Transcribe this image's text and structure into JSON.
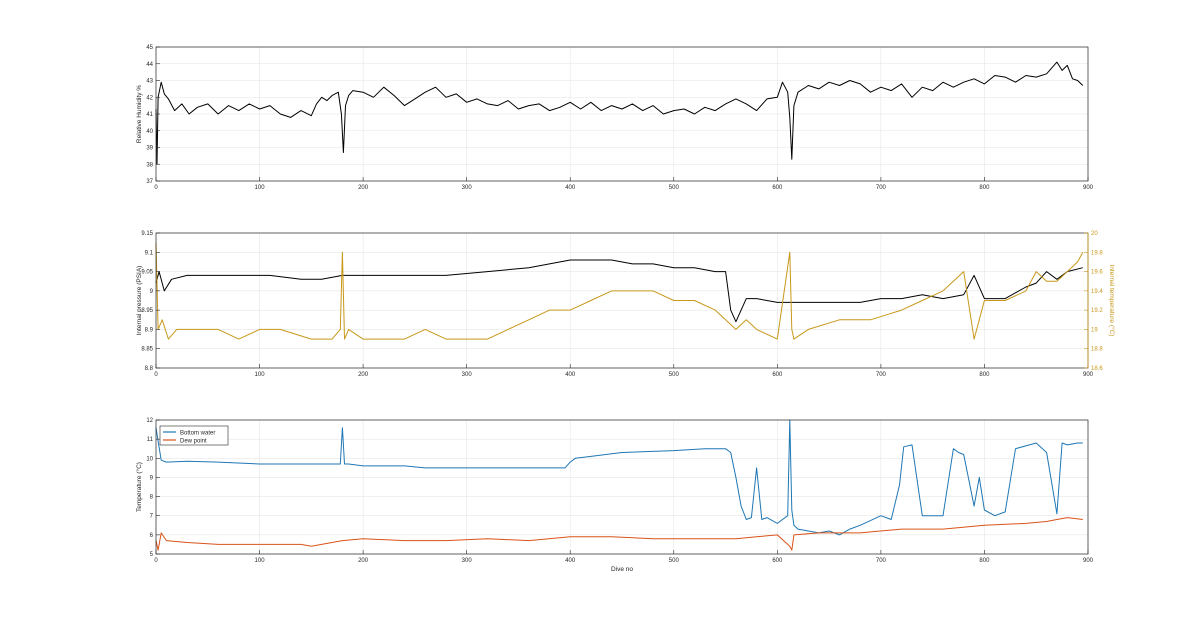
{
  "colors": {
    "black": "#000000",
    "temperature_orange": "#c8981a",
    "bottom_water_blue": "#1f77b4",
    "dew_point_red": "#d95319",
    "grid": "#e6e6e6",
    "axis": "#262626"
  },
  "chart_data": [
    {
      "type": "line",
      "xlabel": "",
      "ylabel": "Relative Humidity %",
      "xlim": [
        0,
        900
      ],
      "ylim": [
        37,
        45
      ],
      "xticks": [
        0,
        100,
        200,
        300,
        400,
        500,
        600,
        700,
        800,
        900
      ],
      "yticks": [
        37,
        38,
        39,
        40,
        41,
        42,
        43,
        44,
        45
      ],
      "grid": true,
      "series": [
        {
          "color": "#000000",
          "x": [
            0,
            1,
            2,
            5,
            8,
            12,
            18,
            25,
            32,
            40,
            50,
            60,
            70,
            80,
            90,
            100,
            110,
            120,
            130,
            140,
            150,
            155,
            160,
            165,
            170,
            176,
            179,
            181,
            183,
            186,
            190,
            200,
            210,
            220,
            230,
            240,
            250,
            260,
            270,
            280,
            290,
            300,
            310,
            320,
            330,
            340,
            350,
            360,
            370,
            380,
            390,
            400,
            410,
            420,
            430,
            440,
            450,
            460,
            470,
            480,
            490,
            500,
            510,
            520,
            530,
            540,
            550,
            560,
            570,
            580,
            590,
            600,
            605,
            610,
            612,
            614,
            616,
            620,
            630,
            640,
            650,
            660,
            670,
            680,
            690,
            700,
            710,
            720,
            730,
            740,
            750,
            760,
            770,
            780,
            790,
            800,
            810,
            820,
            830,
            840,
            850,
            860,
            870,
            875,
            880,
            885,
            890,
            895
          ],
          "values": [
            41.3,
            38.0,
            42.0,
            42.9,
            42.2,
            41.9,
            41.2,
            41.6,
            41.0,
            41.4,
            41.6,
            41.0,
            41.5,
            41.2,
            41.6,
            41.3,
            41.5,
            41.0,
            40.8,
            41.2,
            40.9,
            41.6,
            42.0,
            41.8,
            42.1,
            42.3,
            41.0,
            38.7,
            41.5,
            42.1,
            42.4,
            42.3,
            42.0,
            42.6,
            42.1,
            41.5,
            41.9,
            42.3,
            42.6,
            42.0,
            42.2,
            41.7,
            41.9,
            41.6,
            41.5,
            41.8,
            41.3,
            41.5,
            41.6,
            41.2,
            41.4,
            41.7,
            41.3,
            41.7,
            41.2,
            41.5,
            41.3,
            41.6,
            41.2,
            41.5,
            41.0,
            41.2,
            41.3,
            41.0,
            41.4,
            41.2,
            41.6,
            41.9,
            41.6,
            41.2,
            41.9,
            42.0,
            42.9,
            42.3,
            40.8,
            38.3,
            41.5,
            42.3,
            42.7,
            42.5,
            42.9,
            42.7,
            43.0,
            42.8,
            42.3,
            42.6,
            42.4,
            42.8,
            42.0,
            42.6,
            42.4,
            42.9,
            42.6,
            42.9,
            43.1,
            42.8,
            43.3,
            43.2,
            42.9,
            43.3,
            43.2,
            43.4,
            44.1,
            43.6,
            43.9,
            43.1,
            43.0,
            42.7
          ]
        }
      ]
    },
    {
      "type": "line",
      "xlabel": "",
      "ylabel": "Internal pressure (PSIA)",
      "ylabel_right": "Internal temperature (°C)",
      "xlim": [
        0,
        900
      ],
      "ylim": [
        8.8,
        9.15
      ],
      "ylim_right": [
        18.6,
        20
      ],
      "xticks": [
        0,
        100,
        200,
        300,
        400,
        500,
        600,
        700,
        800,
        900
      ],
      "yticks": [
        8.8,
        8.85,
        8.9,
        8.95,
        9,
        9.05,
        9.1,
        9.15
      ],
      "yticks_labels": [
        "8.8",
        "8.85",
        "8.9",
        "8.95",
        "9",
        "9.05",
        "9.1",
        "9.15"
      ],
      "yticks_right": [
        18.6,
        18.8,
        19,
        19.2,
        19.4,
        19.6,
        19.8,
        20
      ],
      "yticks_right_labels": [
        "18.6",
        "18.8",
        "19",
        "19.2",
        "19.4",
        "19.6",
        "19.8",
        "20"
      ],
      "grid": true,
      "series": [
        {
          "axis": "left",
          "color": "#000000",
          "x": [
            0,
            3,
            8,
            15,
            30,
            50,
            80,
            110,
            140,
            160,
            180,
            200,
            240,
            280,
            320,
            360,
            380,
            400,
            420,
            440,
            460,
            480,
            500,
            520,
            540,
            550,
            555,
            560,
            570,
            580,
            600,
            620,
            640,
            660,
            680,
            700,
            720,
            740,
            760,
            780,
            790,
            800,
            820,
            840,
            850,
            860,
            870,
            880,
            895
          ],
          "values": [
            9.02,
            9.05,
            9.0,
            9.03,
            9.04,
            9.04,
            9.04,
            9.04,
            9.03,
            9.03,
            9.04,
            9.04,
            9.04,
            9.04,
            9.05,
            9.06,
            9.07,
            9.08,
            9.08,
            9.08,
            9.07,
            9.07,
            9.06,
            9.06,
            9.05,
            9.05,
            8.95,
            8.92,
            8.98,
            8.98,
            8.97,
            8.97,
            8.97,
            8.97,
            8.97,
            8.98,
            8.98,
            8.99,
            8.98,
            8.99,
            9.04,
            8.98,
            8.98,
            9.01,
            9.02,
            9.05,
            9.03,
            9.05,
            9.06
          ]
        },
        {
          "axis": "right",
          "color": "#c8981a",
          "x": [
            0,
            2,
            6,
            12,
            20,
            40,
            60,
            80,
            100,
            120,
            150,
            170,
            178,
            180,
            182,
            186,
            200,
            220,
            240,
            260,
            280,
            300,
            320,
            340,
            360,
            380,
            400,
            420,
            440,
            460,
            480,
            500,
            520,
            540,
            560,
            570,
            580,
            600,
            612,
            614,
            616,
            630,
            660,
            690,
            720,
            740,
            760,
            780,
            790,
            800,
            820,
            840,
            850,
            860,
            870,
            880,
            890,
            895
          ],
          "values": [
            19.9,
            19.0,
            19.1,
            18.9,
            19.0,
            19.0,
            19.0,
            18.9,
            19.0,
            19.0,
            18.9,
            18.9,
            19.0,
            19.8,
            18.9,
            19.0,
            18.9,
            18.9,
            18.9,
            19.0,
            18.9,
            18.9,
            18.9,
            19.0,
            19.1,
            19.2,
            19.2,
            19.3,
            19.4,
            19.4,
            19.4,
            19.3,
            19.3,
            19.2,
            19.0,
            19.1,
            19.0,
            18.9,
            19.8,
            19.0,
            18.9,
            19.0,
            19.1,
            19.1,
            19.2,
            19.3,
            19.4,
            19.6,
            18.9,
            19.3,
            19.3,
            19.4,
            19.6,
            19.5,
            19.5,
            19.6,
            19.7,
            19.8
          ]
        }
      ]
    },
    {
      "type": "line",
      "xlabel": "Dive no",
      "ylabel": "Temperature (°C)",
      "xlim": [
        0,
        900
      ],
      "ylim": [
        5,
        12
      ],
      "xticks": [
        0,
        100,
        200,
        300,
        400,
        500,
        600,
        700,
        800,
        900
      ],
      "yticks": [
        5,
        6,
        7,
        8,
        9,
        10,
        11,
        12
      ],
      "grid": true,
      "legend": "top-left",
      "series": [
        {
          "name": "Bottom water",
          "color": "#1f77b4",
          "x": [
            0,
            2,
            5,
            10,
            30,
            60,
            100,
            150,
            178,
            180,
            182,
            186,
            200,
            240,
            260,
            300,
            350,
            395,
            400,
            405,
            420,
            450,
            500,
            530,
            550,
            555,
            560,
            565,
            570,
            575,
            580,
            585,
            590,
            600,
            610,
            612,
            614,
            616,
            620,
            630,
            640,
            650,
            660,
            670,
            680,
            700,
            710,
            718,
            722,
            730,
            740,
            760,
            770,
            775,
            780,
            790,
            795,
            800,
            810,
            820,
            830,
            850,
            860,
            870,
            875,
            880,
            890,
            895
          ],
          "values": [
            11.6,
            10.9,
            9.9,
            9.8,
            9.85,
            9.8,
            9.7,
            9.7,
            9.7,
            11.6,
            9.7,
            9.7,
            9.6,
            9.6,
            9.5,
            9.5,
            9.5,
            9.5,
            9.8,
            10.0,
            10.1,
            10.3,
            10.4,
            10.5,
            10.5,
            10.3,
            9.0,
            7.5,
            6.8,
            6.9,
            9.5,
            6.8,
            6.9,
            6.6,
            7.0,
            12.0,
            7.3,
            6.5,
            6.3,
            6.2,
            6.1,
            6.2,
            6.0,
            6.3,
            6.5,
            7.0,
            6.8,
            8.6,
            10.6,
            10.7,
            7.0,
            7.0,
            10.5,
            10.3,
            10.2,
            7.5,
            9.0,
            7.3,
            7.0,
            7.2,
            10.5,
            10.8,
            10.3,
            7.1,
            10.8,
            10.7,
            10.8,
            10.8
          ]
        },
        {
          "name": "Dew point",
          "color": "#d95319",
          "x": [
            0,
            2,
            5,
            10,
            30,
            60,
            100,
            140,
            150,
            180,
            200,
            240,
            280,
            320,
            360,
            400,
            440,
            480,
            520,
            560,
            580,
            600,
            612,
            614,
            616,
            640,
            680,
            720,
            760,
            800,
            840,
            860,
            870,
            880,
            895
          ],
          "values": [
            5.7,
            5.2,
            6.1,
            5.7,
            5.6,
            5.5,
            5.5,
            5.5,
            5.4,
            5.7,
            5.8,
            5.7,
            5.7,
            5.8,
            5.7,
            5.9,
            5.9,
            5.8,
            5.8,
            5.8,
            5.9,
            6.0,
            5.4,
            5.2,
            6.0,
            6.1,
            6.1,
            6.3,
            6.3,
            6.5,
            6.6,
            6.7,
            6.8,
            6.9,
            6.8
          ]
        }
      ]
    }
  ]
}
